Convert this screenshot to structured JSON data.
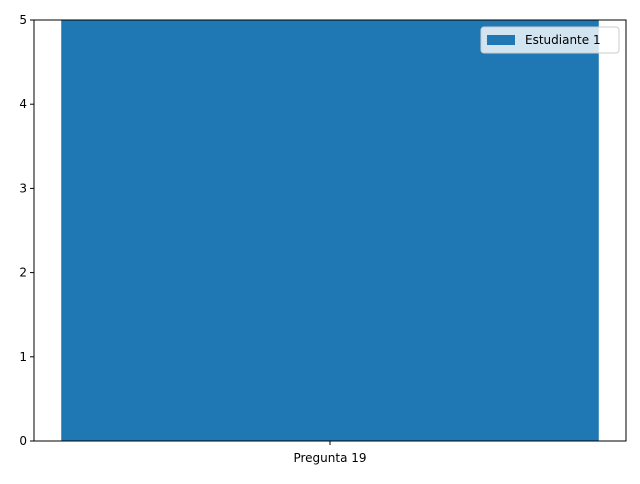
{
  "chart_data": {
    "type": "bar",
    "categories": [
      "Pregunta 19"
    ],
    "series": [
      {
        "name": "Estudiante 1",
        "values": [
          5
        ],
        "color": "#1f77b4"
      }
    ],
    "title": "",
    "xlabel": "",
    "ylabel": "",
    "ylim": [
      0,
      5
    ],
    "yticks": [
      "0",
      "1",
      "2",
      "3",
      "4",
      "5"
    ],
    "grid": false,
    "legend_position": "top-right"
  }
}
